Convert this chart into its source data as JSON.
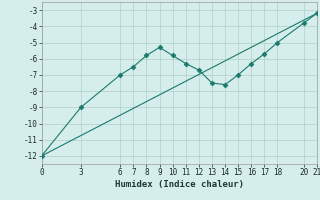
{
  "line1_x": [
    0,
    3,
    6,
    7,
    8,
    9,
    10,
    11,
    12,
    13,
    14,
    15,
    16,
    17,
    18,
    20,
    21
  ],
  "line1_y": [
    -12,
    -9,
    -7,
    -6.5,
    -5.8,
    -5.3,
    -5.8,
    -6.3,
    -6.7,
    -7.5,
    -7.6,
    -7.0,
    -6.3,
    -5.7,
    -5.0,
    -3.8,
    -3.2
  ],
  "line2_x": [
    0,
    21
  ],
  "line2_y": [
    -12,
    -3.2
  ],
  "line_color": "#1a7a6e",
  "marker": "D",
  "markersize": 2.5,
  "xlabel": "Humidex (Indice chaleur)",
  "xlim": [
    0,
    21
  ],
  "ylim": [
    -12.5,
    -2.5
  ],
  "xticks": [
    0,
    3,
    6,
    7,
    8,
    9,
    10,
    11,
    12,
    13,
    14,
    15,
    16,
    17,
    18,
    20,
    21
  ],
  "yticks": [
    -12,
    -11,
    -10,
    -9,
    -8,
    -7,
    -6,
    -5,
    -4,
    -3
  ],
  "bg_color": "#d6eeeb",
  "grid_color": "#b8d4d0"
}
